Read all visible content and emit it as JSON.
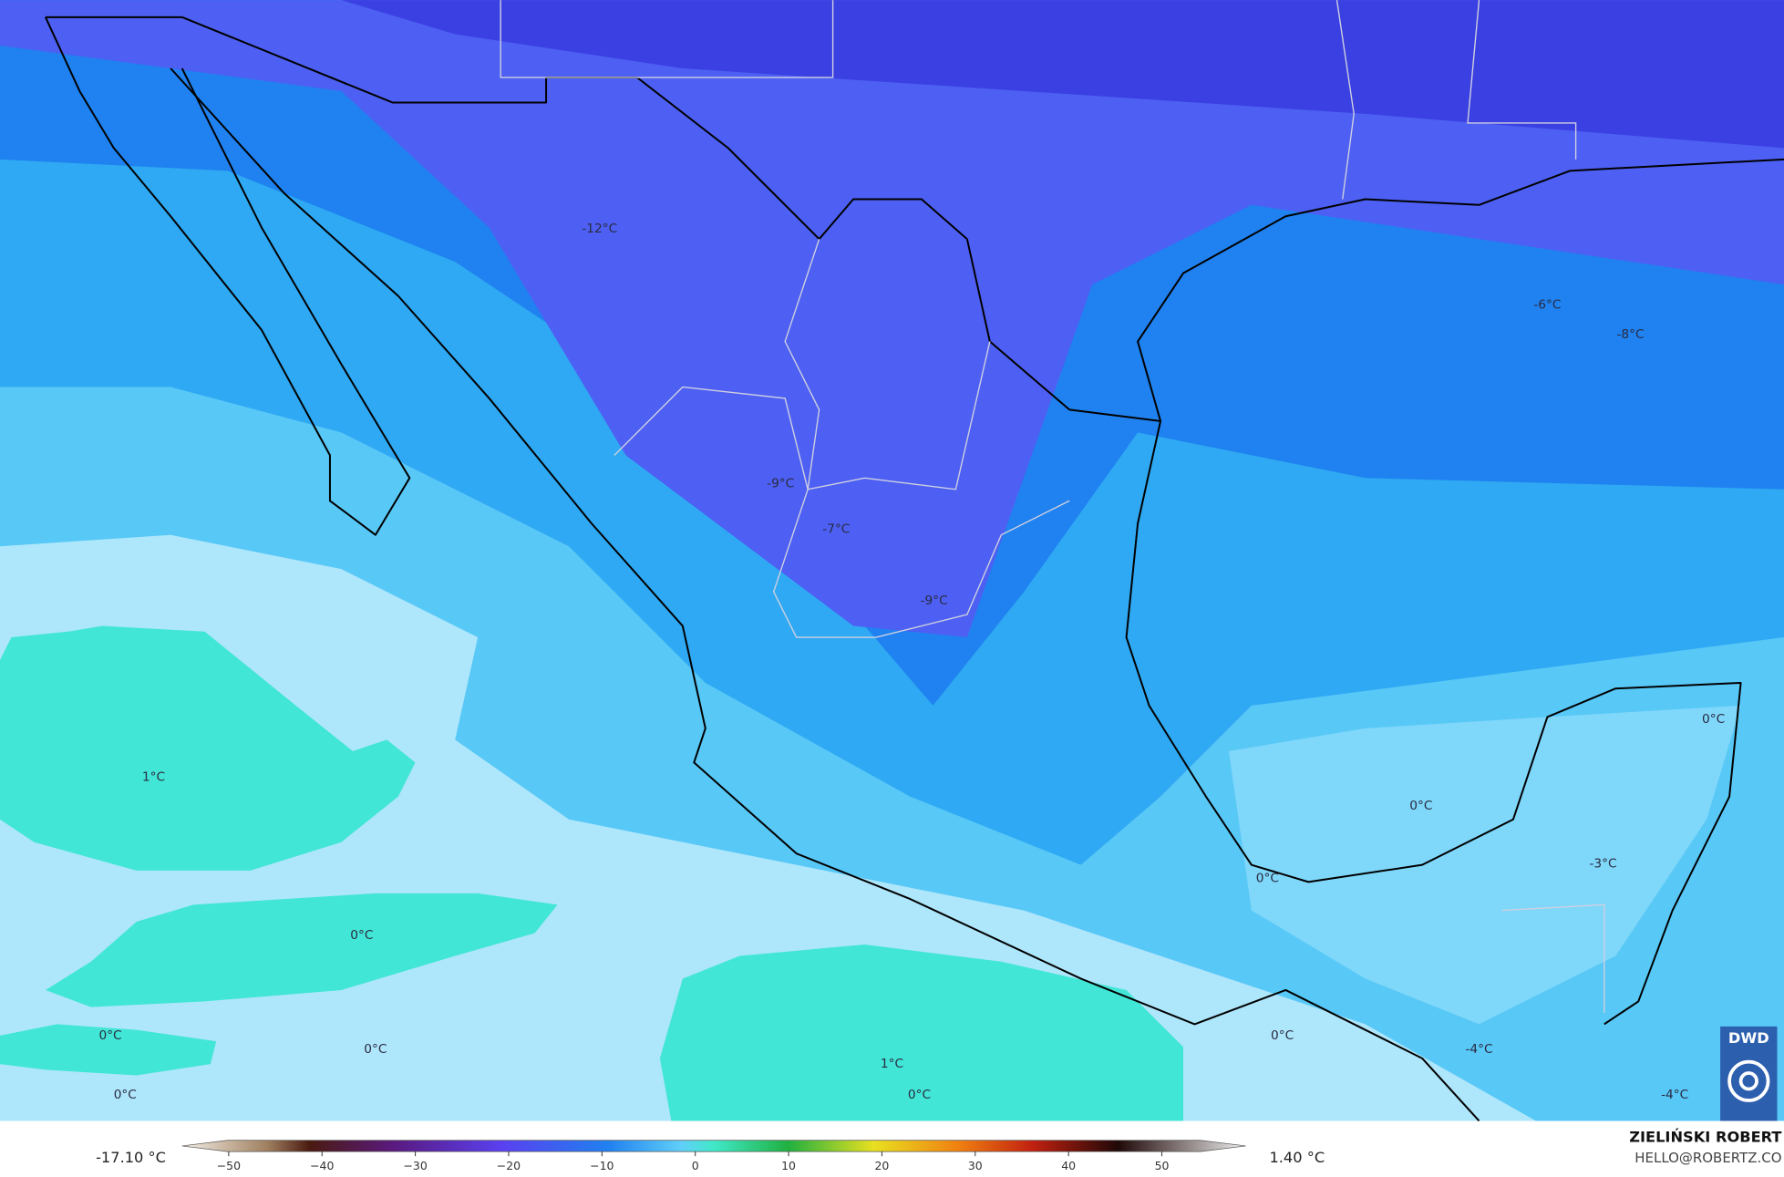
{
  "map_labels": [
    "-12°C",
    "-9°C",
    "-7°C",
    "-9°C",
    "-6°C",
    "-8°C",
    "1°C",
    "0°C",
    "0°C",
    "0°C",
    "0°C",
    "1°C",
    "0°C",
    "0°C",
    "0°C",
    "0°C",
    "0°C",
    "-3°C",
    "-4°C",
    "-4°C"
  ],
  "legend": {
    "min_label": "-17.10 °C",
    "max_label": "1.40 °C",
    "lim": [
      -55,
      59
    ],
    "ticks": [
      {
        "value": -50,
        "label": "−50"
      },
      {
        "value": -40,
        "label": "−40"
      },
      {
        "value": -30,
        "label": "−30"
      },
      {
        "value": -20,
        "label": "−20"
      },
      {
        "value": -10,
        "label": "−10"
      },
      0,
      10,
      20,
      30,
      40,
      50
    ]
  },
  "credits": {
    "author": "ZIELIŃSKI ROBERT",
    "contact": "HELLO@ROBERTZ.CO"
  },
  "logo": "DWD"
}
